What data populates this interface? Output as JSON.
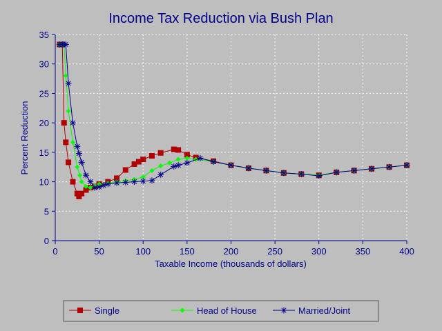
{
  "chart_data": {
    "type": "line",
    "title": "Income Tax Reduction via Bush Plan",
    "xlabel": "Taxable Income (thousands of dollars)",
    "ylabel": "Percent Reduction",
    "xlim": [
      0,
      400
    ],
    "ylim": [
      0,
      35
    ],
    "xticks": [
      "0",
      "50",
      "100",
      "150",
      "200",
      "250",
      "300",
      "350",
      "400"
    ],
    "yticks": [
      "0",
      "5",
      "10",
      "15",
      "20",
      "25",
      "30",
      "35"
    ],
    "grid": true,
    "legend_position": "bottom",
    "series": [
      {
        "name": "Single",
        "color": "#b00000",
        "marker": "square",
        "x": [
          5,
          8,
          10,
          12,
          15,
          20,
          25,
          27,
          30,
          35,
          40,
          45,
          50,
          60,
          70,
          80,
          90,
          95,
          100,
          110,
          120,
          135,
          140,
          150,
          160,
          180,
          200,
          220,
          240,
          260,
          280,
          300,
          320,
          340,
          360,
          380,
          400
        ],
        "y": [
          33.3,
          33.3,
          20.0,
          16.7,
          13.3,
          10.0,
          8.0,
          7.5,
          8.0,
          8.6,
          9.0,
          9.2,
          9.6,
          10.0,
          10.6,
          12.0,
          13.0,
          13.4,
          13.8,
          14.4,
          14.9,
          15.5,
          15.4,
          14.6,
          14.1,
          13.5,
          12.8,
          12.3,
          11.9,
          11.5,
          11.3,
          11.1,
          11.6,
          11.9,
          12.2,
          12.5,
          12.8
        ]
      },
      {
        "name": "Head of House",
        "color": "#00ff00",
        "marker": "diamond",
        "x": [
          5,
          8,
          10,
          12,
          15,
          20,
          25,
          28,
          30,
          35,
          40,
          45,
          50,
          60,
          70,
          80,
          90,
          100,
          110,
          120,
          130,
          140,
          150,
          160,
          180,
          200,
          220,
          240,
          260,
          280,
          300,
          320,
          340,
          360,
          380,
          400
        ],
        "y": [
          33.3,
          33.3,
          33.3,
          28.0,
          22.0,
          16.7,
          12.5,
          11.1,
          10.0,
          9.2,
          9.0,
          9.3,
          9.6,
          9.8,
          10.0,
          10.2,
          10.4,
          10.8,
          11.9,
          12.7,
          13.2,
          13.8,
          14.0,
          13.8,
          13.4,
          12.8,
          12.3,
          11.9,
          11.5,
          11.3,
          11.1,
          11.6,
          11.9,
          12.2,
          12.5,
          12.8
        ]
      },
      {
        "name": "Married/Joint",
        "color": "#00008b",
        "marker": "star",
        "x": [
          5,
          8,
          10,
          12,
          15,
          20,
          25,
          27,
          30,
          35,
          40,
          45,
          50,
          55,
          60,
          70,
          80,
          90,
          100,
          110,
          120,
          135,
          140,
          150,
          165,
          180,
          200,
          220,
          240,
          260,
          280,
          300,
          320,
          340,
          360,
          380,
          400
        ],
        "y": [
          33.3,
          33.3,
          33.3,
          33.3,
          26.7,
          20.0,
          16.0,
          14.8,
          13.3,
          11.1,
          10.0,
          9.0,
          9.1,
          9.4,
          9.6,
          9.8,
          9.9,
          10.0,
          10.1,
          10.2,
          11.2,
          12.6,
          12.8,
          13.2,
          14.0,
          13.4,
          12.8,
          12.3,
          11.9,
          11.5,
          11.3,
          11.0,
          11.6,
          11.9,
          12.2,
          12.5,
          12.8
        ]
      }
    ]
  }
}
